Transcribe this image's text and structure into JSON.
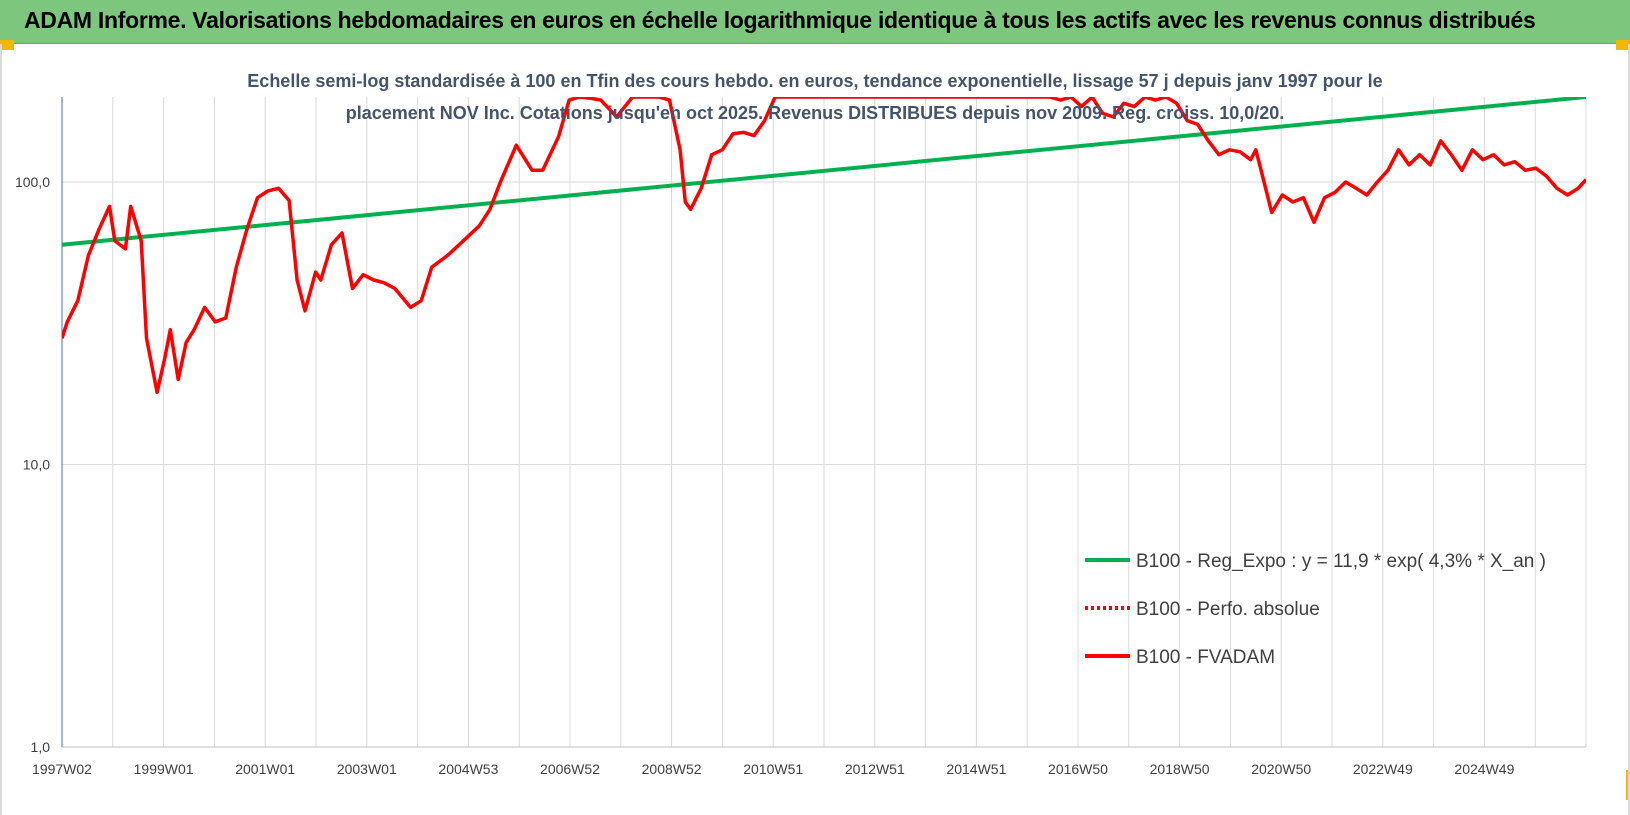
{
  "banner": {
    "title": "ADAM Informe. Valorisations hebdomadaires en euros en échelle logarithmique identique à tous les actifs avec les revenus connus distribués",
    "background": "#7dc67d"
  },
  "chart_data": {
    "type": "line",
    "title_lines": [
      "Echelle semi-log standardisée à 100 en Tfin des cours hebdo. en euros, tendance exponentielle, lissage 57 j depuis janv 1997 pour le",
      "placement NOV Inc. Cotations jusqu'en oct 2025. Revenus DISTRIBUES depuis nov 2009. Reg. croiss. 10,0/20."
    ],
    "y_scale": "log",
    "ylim": [
      1,
      200
    ],
    "y_ticks": [
      1,
      10,
      100
    ],
    "y_tick_labels": [
      "1,0",
      "10,0",
      "100,0"
    ],
    "xlim": [
      1997.0,
      2025.85
    ],
    "x_tick_labels": [
      "1997W02",
      "1999W01",
      "2001W01",
      "2003W01",
      "2004W53",
      "2006W52",
      "2008W52",
      "2010W51",
      "2012W51",
      "2014W51",
      "2016W50",
      "2018W50",
      "2020W50",
      "2022W49",
      "2024W49"
    ],
    "grid": true,
    "legend_position": "bottom-right",
    "series": [
      {
        "name": "B100 - Reg_Expo : y = 11,9 * exp( 4,3% *  X_an )",
        "color": "#00b050",
        "style": "solid",
        "x": [
          1997.0,
          2025.85
        ],
        "y": [
          60,
          200
        ]
      },
      {
        "name": "B100 - Perfo. absolue",
        "color": "#ff0000",
        "style": "dotted",
        "x": [],
        "y": []
      },
      {
        "name": "B100 - FVADAM",
        "color": "#ff0000",
        "style": "solid",
        "x": [
          1997.0,
          1997.1,
          1997.3,
          1997.5,
          1997.7,
          1997.9,
          1998.0,
          1998.2,
          1998.3,
          1998.5,
          1998.6,
          1998.8,
          1998.95,
          1999.05,
          1999.2,
          1999.35,
          1999.5,
          1999.7,
          1999.9,
          2000.1,
          2000.3,
          2000.5,
          2000.7,
          2000.9,
          2001.1,
          2001.3,
          2001.45,
          2001.6,
          2001.8,
          2001.9,
          2002.1,
          2002.3,
          2002.5,
          2002.7,
          2002.9,
          2003.1,
          2003.3,
          2003.6,
          2003.8,
          2004.0,
          2004.3,
          2004.6,
          2004.9,
          2005.1,
          2005.3,
          2005.6,
          2005.9,
          2006.1,
          2006.4,
          2006.6,
          2006.8,
          2007.0,
          2007.2,
          2007.5,
          2007.8,
          2008.0,
          2008.3,
          2008.5,
          2008.7,
          2008.8,
          2008.9,
          2009.1,
          2009.3,
          2009.5,
          2009.7,
          2009.9,
          2010.1,
          2010.3,
          2010.5,
          2010.7,
          2010.8,
          2010.85,
          2015.7,
          2015.9,
          2016.1,
          2016.3,
          2016.5,
          2016.7,
          2016.9,
          2017.1,
          2017.3,
          2017.5,
          2017.7,
          2017.9,
          2018.1,
          2018.3,
          2018.5,
          2018.7,
          2018.9,
          2019.1,
          2019.3,
          2019.5,
          2019.6,
          2019.7,
          2019.9,
          2020.1,
          2020.3,
          2020.5,
          2020.7,
          2020.9,
          2021.1,
          2021.3,
          2021.5,
          2021.7,
          2021.9,
          2022.1,
          2022.3,
          2022.5,
          2022.7,
          2022.9,
          2023.1,
          2023.3,
          2023.5,
          2023.7,
          2023.9,
          2024.1,
          2024.3,
          2024.5,
          2024.7,
          2024.9,
          2025.1,
          2025.3,
          2025.5,
          2025.7,
          2025.85
        ],
        "y": [
          28,
          32,
          38,
          55,
          68,
          82,
          62,
          58,
          82,
          62,
          28,
          18,
          24,
          30,
          20,
          27,
          30,
          36,
          32,
          33,
          50,
          68,
          88,
          93,
          95,
          86,
          45,
          35,
          48,
          45,
          60,
          66,
          42,
          47,
          45,
          44,
          42,
          36,
          38,
          50,
          55,
          62,
          70,
          80,
          100,
          135,
          110,
          110,
          145,
          195,
          200,
          198,
          195,
          170,
          200,
          200,
          200,
          195,
          130,
          85,
          80,
          95,
          125,
          130,
          148,
          150,
          146,
          165,
          200,
          200,
          200,
          200,
          200,
          195,
          200,
          185,
          200,
          175,
          170,
          190,
          185,
          200,
          195,
          200,
          190,
          165,
          160,
          140,
          125,
          130,
          128,
          120,
          130,
          110,
          78,
          90,
          85,
          88,
          72,
          88,
          92,
          100,
          95,
          90,
          100,
          110,
          130,
          115,
          125,
          115,
          140,
          125,
          110,
          130,
          120,
          125,
          115,
          118,
          110,
          112,
          105,
          95,
          90,
          95,
          102
        ]
      }
    ]
  }
}
